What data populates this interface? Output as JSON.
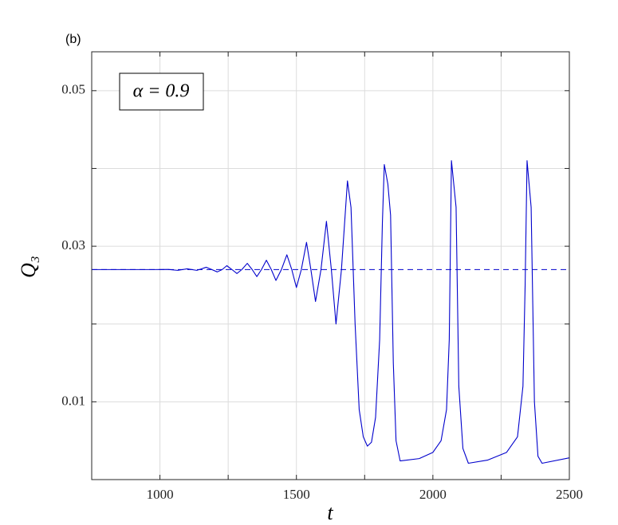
{
  "chart_data": {
    "type": "line",
    "panel_label": "(b)",
    "annotation": "α = 0.9",
    "xlabel": "t",
    "ylabel": "Q₃",
    "xlim": [
      750,
      2500
    ],
    "ylim": [
      0,
      0.055
    ],
    "xticks": [
      1000,
      1500,
      2000,
      2500
    ],
    "xticks_unlabeled": [
      1250,
      1750,
      2250
    ],
    "yticks": [
      0.01,
      0.03,
      0.05
    ],
    "yticks_unlabeled": [
      0.02,
      0.04
    ],
    "grid": true,
    "series": [
      {
        "color": "#0000cc",
        "dash": false,
        "x": [
          750,
          980,
          1030,
          1065,
          1100,
          1135,
          1170,
          1190,
          1210,
          1228,
          1245,
          1264,
          1282,
          1300,
          1320,
          1338,
          1355,
          1372,
          1390,
          1408,
          1425,
          1445,
          1465,
          1483,
          1500,
          1518,
          1537,
          1553,
          1570,
          1590,
          1610,
          1628,
          1645,
          1665,
          1687,
          1700,
          1715,
          1730,
          1745,
          1760,
          1775,
          1790,
          1805,
          1815,
          1822,
          1835,
          1845,
          1855,
          1865,
          1880,
          1950,
          2000,
          2030,
          2050,
          2060,
          2068,
          2085,
          2095,
          2110,
          2130,
          2200,
          2270,
          2310,
          2330,
          2338,
          2345,
          2360,
          2372,
          2385,
          2400,
          2500
        ],
        "values": [
          0.027,
          0.027,
          0.02702,
          0.0269,
          0.0271,
          0.0269,
          0.0273,
          0.027,
          0.0267,
          0.027,
          0.0275,
          0.027,
          0.0265,
          0.027,
          0.0278,
          0.027,
          0.0261,
          0.027,
          0.0282,
          0.027,
          0.0256,
          0.027,
          0.0289,
          0.027,
          0.0247,
          0.027,
          0.0305,
          0.027,
          0.0229,
          0.027,
          0.0332,
          0.027,
          0.02,
          0.027,
          0.0384,
          0.035,
          0.02,
          0.009,
          0.0055,
          0.0043,
          0.0048,
          0.008,
          0.018,
          0.033,
          0.0405,
          0.038,
          0.034,
          0.015,
          0.005,
          0.0024,
          0.0027,
          0.0035,
          0.005,
          0.009,
          0.018,
          0.041,
          0.035,
          0.012,
          0.004,
          0.0021,
          0.0025,
          0.0035,
          0.0055,
          0.012,
          0.025,
          0.041,
          0.035,
          0.01,
          0.003,
          0.0021,
          0.0028
        ]
      },
      {
        "color": "#0000cc",
        "dash": true,
        "x": [
          750,
          2500
        ],
        "values": [
          0.027,
          0.027
        ]
      }
    ]
  }
}
